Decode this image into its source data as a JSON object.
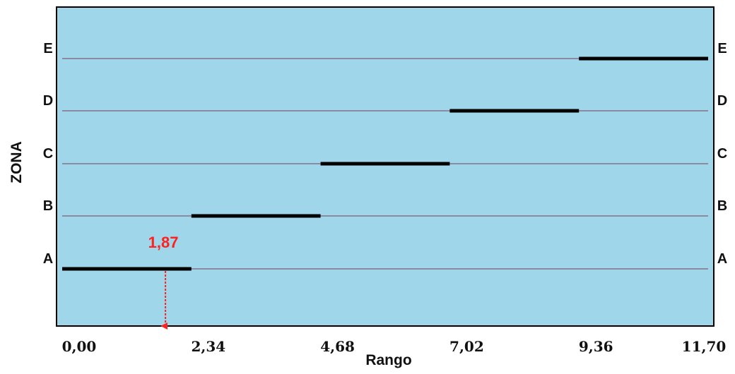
{
  "chart_data": {
    "type": "line",
    "xlabel": "Rango",
    "ylabel": "ZONA",
    "x_ticks": [
      "0,00",
      "2,34",
      "4,68",
      "7,02",
      "9,36",
      "11,70"
    ],
    "xlim": [
      0,
      11.7
    ],
    "zones": [
      "A",
      "B",
      "C",
      "D",
      "E"
    ],
    "segments": [
      {
        "zone": "A",
        "x_start": 0.0,
        "x_end": 2.34
      },
      {
        "zone": "B",
        "x_start": 2.34,
        "x_end": 4.68
      },
      {
        "zone": "C",
        "x_start": 4.68,
        "x_end": 7.02
      },
      {
        "zone": "D",
        "x_start": 7.02,
        "x_end": 9.36
      },
      {
        "zone": "E",
        "x_start": 9.36,
        "x_end": 11.7
      }
    ],
    "marker": {
      "value": 1.87,
      "label": "1,87",
      "color": "#ff2020"
    },
    "colors": {
      "background": "#9fd6ea",
      "segment": "#000000",
      "guide_line": "#8a8aa0"
    },
    "grid": false
  }
}
